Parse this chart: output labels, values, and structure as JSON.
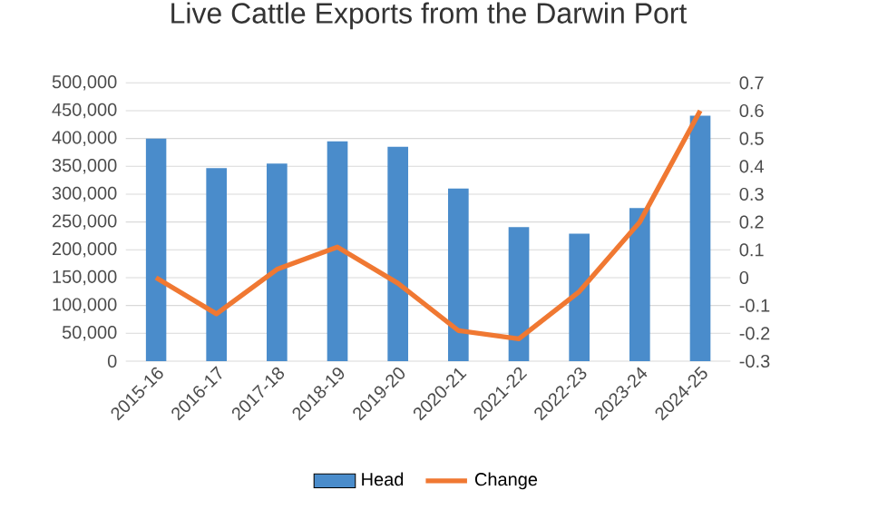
{
  "chart_data": {
    "type": "bar",
    "title": "Live Cattle Exports from the Darwin Port",
    "categories": [
      "2015-16",
      "2016-17",
      "2017-18",
      "2018-19",
      "2019-20",
      "2020-21",
      "2021-22",
      "2022-23",
      "2023-24",
      "2024-25"
    ],
    "series": [
      {
        "name": "Head",
        "color": "#4a8ccb",
        "values": [
          400000,
          347000,
          355000,
          395000,
          385000,
          310000,
          241000,
          229000,
          275000,
          441000
        ]
      },
      {
        "name": "Change",
        "type": "line",
        "axis": "y2",
        "color": "#f07832",
        "values": [
          0.0,
          -0.13,
          0.03,
          0.11,
          -0.02,
          -0.19,
          -0.22,
          -0.05,
          0.2,
          0.6
        ]
      }
    ],
    "ylim": [
      0,
      500000
    ],
    "yticks": [
      {
        "value": 0,
        "label": "0"
      },
      {
        "value": 50000,
        "label": "50,000"
      },
      {
        "value": 100000,
        "label": "100,000"
      },
      {
        "value": 150000,
        "label": "150,000"
      },
      {
        "value": 200000,
        "label": "200,000"
      },
      {
        "value": 250000,
        "label": "250,000"
      },
      {
        "value": 300000,
        "label": "300,000"
      },
      {
        "value": 350000,
        "label": "350,000"
      },
      {
        "value": 400000,
        "label": "400,000"
      },
      {
        "value": 450000,
        "label": "450,000"
      },
      {
        "value": 500000,
        "label": "500,000"
      }
    ],
    "y2lim": [
      -0.3,
      0.7
    ],
    "y2ticks": [
      -0.3,
      -0.2,
      -0.1,
      0,
      0.1,
      0.2,
      0.3,
      0.4,
      0.5,
      0.6,
      0.7
    ],
    "grid": "y",
    "legend": "bottom",
    "marker": "none"
  }
}
